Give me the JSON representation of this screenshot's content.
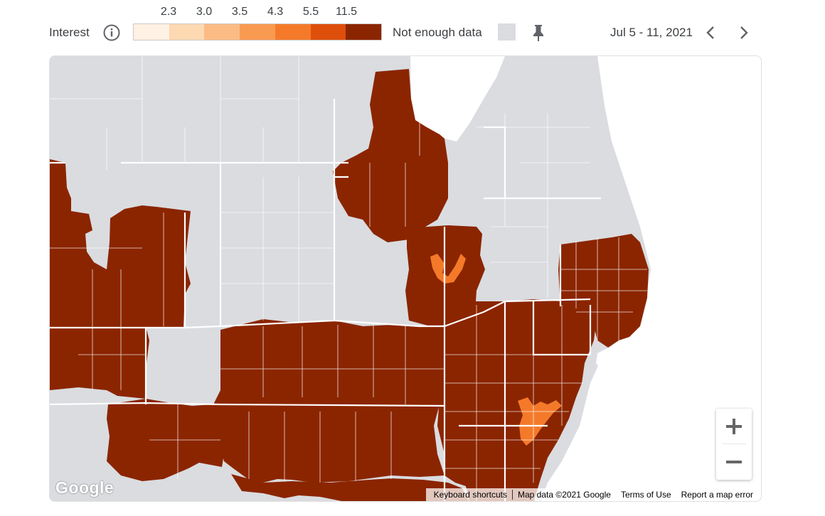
{
  "legend": {
    "title": "Interest",
    "info_icon": "info-icon",
    "ticks": [
      "2.3",
      "3.0",
      "3.5",
      "4.3",
      "5.5",
      "11.5"
    ],
    "colors": [
      "#fff1e3",
      "#fdd9b2",
      "#fbbb85",
      "#f99a51",
      "#f47a2a",
      "#de4f0c",
      "#8b2500"
    ],
    "not_enough_data_label": "Not enough data",
    "not_enough_data_color": "#dadce0",
    "pin_icon": "pin-icon"
  },
  "date_range": {
    "label": "Jul 5 - 11, 2021",
    "prev_icon": "chevron-left-icon",
    "next_icon": "chevron-right-icon"
  },
  "map": {
    "high_color": "#8b2500",
    "mid_color": "#f47a2a",
    "no_data_color": "#dadce0",
    "water_color": "#ffffff",
    "zoom_in_icon": "plus-icon",
    "zoom_out_icon": "minus-icon",
    "logo": "Google",
    "attribution": [
      "Keyboard shortcuts",
      "Map data ©2021 Google",
      "Terms of Use",
      "Report a map error"
    ]
  }
}
